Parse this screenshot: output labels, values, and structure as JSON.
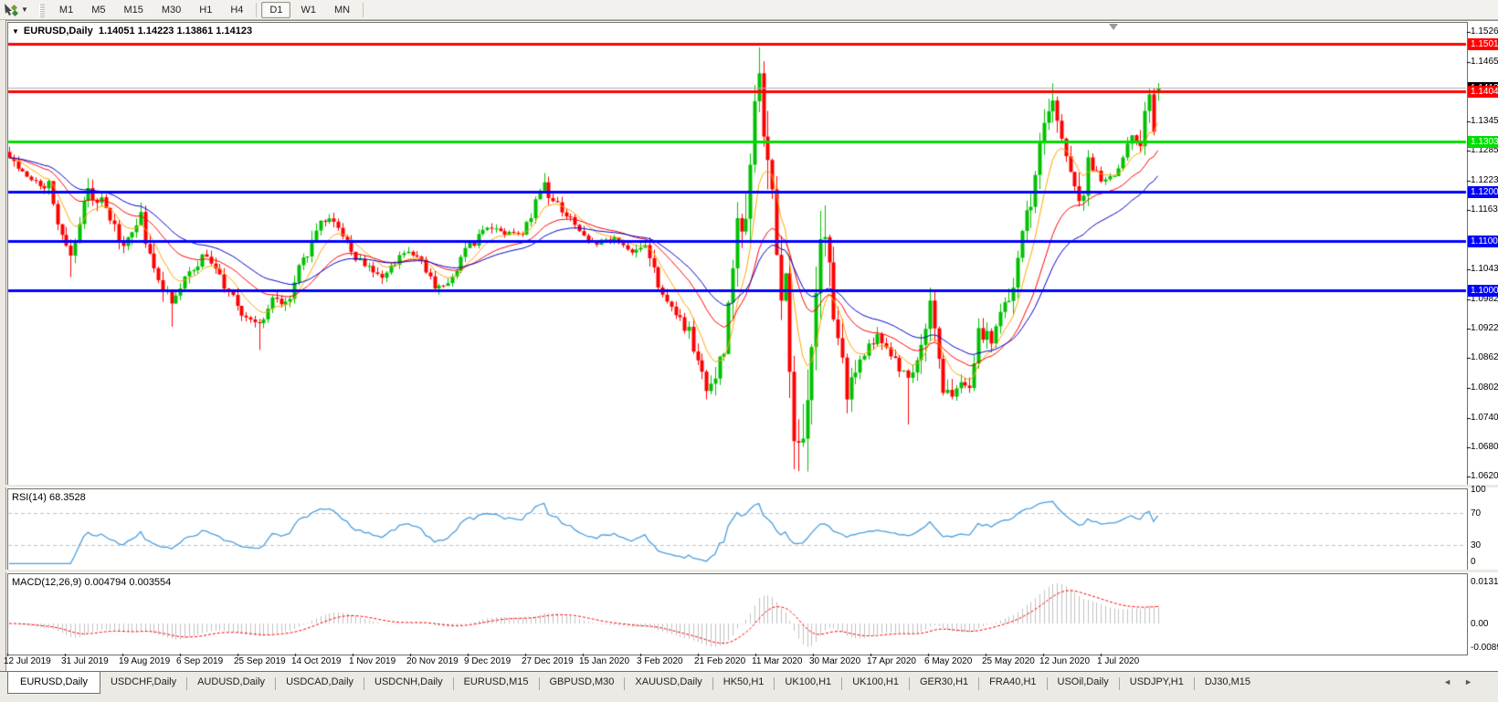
{
  "toolbar": {
    "timeframes": [
      "M1",
      "M5",
      "M15",
      "M30",
      "H1",
      "H4",
      "D1",
      "W1",
      "MN"
    ],
    "active_timeframe": "D1"
  },
  "chart": {
    "title": "EURUSD,Daily",
    "ohlc_text": "1.14051 1.14223 1.13861 1.14123"
  },
  "chart_data": {
    "type": "candlestick",
    "symbol": "EURUSD",
    "timeframe": "Daily",
    "title": "EURUSD,Daily 1.14051 1.14223 1.13861 1.14123",
    "bar_count": 263,
    "price_axis": {
      "min": 1.0606,
      "max": 1.1545,
      "tick_labels": [
        "1.15265",
        "1.14650",
        "1.13450",
        "1.12850",
        "1.12235",
        "1.11635",
        "1.10435",
        "1.09820",
        "1.09220",
        "1.08620",
        "1.08020",
        "1.07405",
        "1.06805",
        "1.06205"
      ],
      "tick_prices": [
        1.15265,
        1.1465,
        1.1345,
        1.1285,
        1.12235,
        1.11635,
        1.10435,
        1.0982,
        1.0922,
        1.0862,
        1.0802,
        1.07405,
        1.06805,
        1.06205
      ]
    },
    "x_axis_labels": [
      "12 Jul 2019",
      "31 Jul 2019",
      "19 Aug 2019",
      "6 Sep 2019",
      "25 Sep 2019",
      "14 Oct 2019",
      "1 Nov 2019",
      "20 Nov 2019",
      "9 Dec 2019",
      "27 Dec 2019",
      "15 Jan 2020",
      "3 Feb 2020",
      "21 Feb 2020",
      "11 Mar 2020",
      "30 Mar 2020",
      "17 Apr 2020",
      "6 May 2020",
      "25 May 2020",
      "12 Jun 2020",
      "1 Jul 2020"
    ],
    "last_bar": {
      "open": 1.14051,
      "high": 1.14223,
      "low": 1.13861,
      "close": 1.14123
    },
    "close_anchors": [
      [
        0,
        1.127
      ],
      [
        4,
        1.1225
      ],
      [
        9,
        1.1215
      ],
      [
        13,
        1.1077
      ],
      [
        14,
        1.1085
      ],
      [
        18,
        1.1205
      ],
      [
        22,
        1.117
      ],
      [
        26,
        1.109
      ],
      [
        30,
        1.1145
      ],
      [
        33,
        1.104
      ],
      [
        37,
        1.0972
      ],
      [
        41,
        1.104
      ],
      [
        45,
        1.1074
      ],
      [
        49,
        1.101
      ],
      [
        53,
        1.095
      ],
      [
        57,
        1.0932
      ],
      [
        60,
        1.098
      ],
      [
        63,
        1.097
      ],
      [
        66,
        1.104
      ],
      [
        71,
        1.115
      ],
      [
        75,
        1.113
      ],
      [
        79,
        1.107
      ],
      [
        85,
        1.1017
      ],
      [
        89,
        1.107
      ],
      [
        93,
        1.1075
      ],
      [
        97,
        1.101
      ],
      [
        100,
        1.1018
      ],
      [
        104,
        1.108
      ],
      [
        109,
        1.113
      ],
      [
        113,
        1.1115
      ],
      [
        117,
        1.112
      ],
      [
        122,
        1.1212
      ],
      [
        126,
        1.116
      ],
      [
        130,
        1.1122
      ],
      [
        134,
        1.1095
      ],
      [
        138,
        1.1105
      ],
      [
        142,
        1.108
      ],
      [
        145,
        1.1093
      ],
      [
        149,
        1.0983
      ],
      [
        152,
        1.0945
      ],
      [
        155,
        1.0915
      ],
      [
        159,
        1.0788
      ],
      [
        161,
        1.0805
      ],
      [
        163,
        1.088
      ],
      [
        166,
        1.113
      ],
      [
        168,
        1.117
      ],
      [
        171,
        1.145
      ],
      [
        172,
        1.128
      ],
      [
        174,
        1.1184
      ],
      [
        176,
        1.101
      ],
      [
        177,
        1.0995
      ],
      [
        179,
        1.0692
      ],
      [
        181,
        1.0727
      ],
      [
        183,
        1.088
      ],
      [
        185,
        1.114
      ],
      [
        187,
        1.103
      ],
      [
        189,
        1.09
      ],
      [
        191,
        1.0791
      ],
      [
        194,
        1.086
      ],
      [
        198,
        1.091
      ],
      [
        201,
        1.087
      ],
      [
        205,
        1.082
      ],
      [
        208,
        1.0876
      ],
      [
        210,
        1.098
      ],
      [
        212,
        1.084
      ],
      [
        214,
        1.0783
      ],
      [
        217,
        1.082
      ],
      [
        219,
        1.0805
      ],
      [
        221,
        1.0915
      ],
      [
        224,
        1.09
      ],
      [
        227,
        1.098
      ],
      [
        229,
        1.101
      ],
      [
        231,
        1.1134
      ],
      [
        233,
        1.117
      ],
      [
        235,
        1.1292
      ],
      [
        237,
        1.137
      ],
      [
        238,
        1.1373
      ],
      [
        240,
        1.13
      ],
      [
        242,
        1.124
      ],
      [
        245,
        1.1177
      ],
      [
        246,
        1.126
      ],
      [
        248,
        1.123
      ],
      [
        250,
        1.1219
      ],
      [
        252,
        1.1234
      ],
      [
        254,
        1.127
      ],
      [
        256,
        1.131
      ],
      [
        258,
        1.1284
      ],
      [
        260,
        1.14
      ],
      [
        261,
        1.1345
      ],
      [
        262,
        1.14123
      ]
    ],
    "wick_overrides": [
      [
        14,
        null,
        1.1027
      ],
      [
        37,
        null,
        1.0926
      ],
      [
        57,
        null,
        1.0879
      ],
      [
        122,
        1.1239,
        null
      ],
      [
        159,
        null,
        1.0778
      ],
      [
        171,
        1.1495,
        null
      ],
      [
        179,
        null,
        1.0636
      ],
      [
        205,
        null,
        1.0727
      ],
      [
        238,
        1.1422,
        null
      ]
    ],
    "colors": {
      "bull": "#00c000",
      "bear": "#ff0000",
      "ma_fast": "#ffa500",
      "ma_mid": "#ff0000",
      "ma_slow": "#0000cc",
      "rsi_line": "#4a9ede",
      "level_dash": "#c0c0c0",
      "macd_hist": "#c0c0c0",
      "macd_signal": "#ff0000",
      "bid_line": "#b0b0b0",
      "bid_tag_bg": "#000000"
    },
    "moving_averages": [
      {
        "name": "fast",
        "period": 8,
        "color": "#ffa500"
      },
      {
        "name": "mid",
        "period": 21,
        "color": "#ff0000"
      },
      {
        "name": "slow",
        "period": 34,
        "color": "#0000cc"
      }
    ],
    "hlines": [
      {
        "price": 1.15015,
        "label": "1.15015",
        "color": "#ff0000",
        "width": 3
      },
      {
        "price": 1.14047,
        "label": "1.14047",
        "color": "#ff0000",
        "width": 3
      },
      {
        "price": 1.13034,
        "label": "1.13034",
        "color": "#00dd00",
        "width": 3
      },
      {
        "price": 1.12004,
        "label": "1.12004",
        "color": "#0000ff",
        "width": 3
      },
      {
        "price": 1.11009,
        "label": "1.11009",
        "color": "#0000ff",
        "width": 3
      },
      {
        "price": 1.10008,
        "label": "1.10008",
        "color": "#0000ff",
        "width": 3
      }
    ],
    "bid": {
      "price": 1.14123,
      "label": "1.14123"
    },
    "rsi": {
      "label": "RSI(14) 68.3528",
      "period": 14,
      "current": 68.3528,
      "levels": [
        70,
        30
      ],
      "axis_labels": [
        "100",
        "70",
        "30",
        "0"
      ],
      "axis_values": [
        100,
        70,
        30,
        0
      ]
    },
    "macd": {
      "label": "MACD(12,26,9) 0.004794 0.003554",
      "fast": 12,
      "slow": 26,
      "signal": 9,
      "current_macd": 0.004794,
      "current_signal": 0.003554,
      "axis_labels": [
        "0.013121",
        "0.00",
        "-0.008933"
      ],
      "axis_values": [
        0.013121,
        0.0,
        -0.008933
      ]
    },
    "grid": false,
    "legend": false
  },
  "tabs": {
    "items": [
      "EURUSD,Daily",
      "USDCHF,Daily",
      "AUDUSD,Daily",
      "USDCAD,Daily",
      "USDCNH,Daily",
      "EURUSD,M15",
      "GBPUSD,M30",
      "XAUUSD,Daily",
      "HK50,H1",
      "UK100,H1",
      "UK100,H1",
      "GER30,H1",
      "FRA40,H1",
      "USOil,Daily",
      "USDJPY,H1",
      "DJ30,M15"
    ],
    "active_index": 0,
    "scroll_left_icon": "◄",
    "scroll_right_icon": "►"
  }
}
